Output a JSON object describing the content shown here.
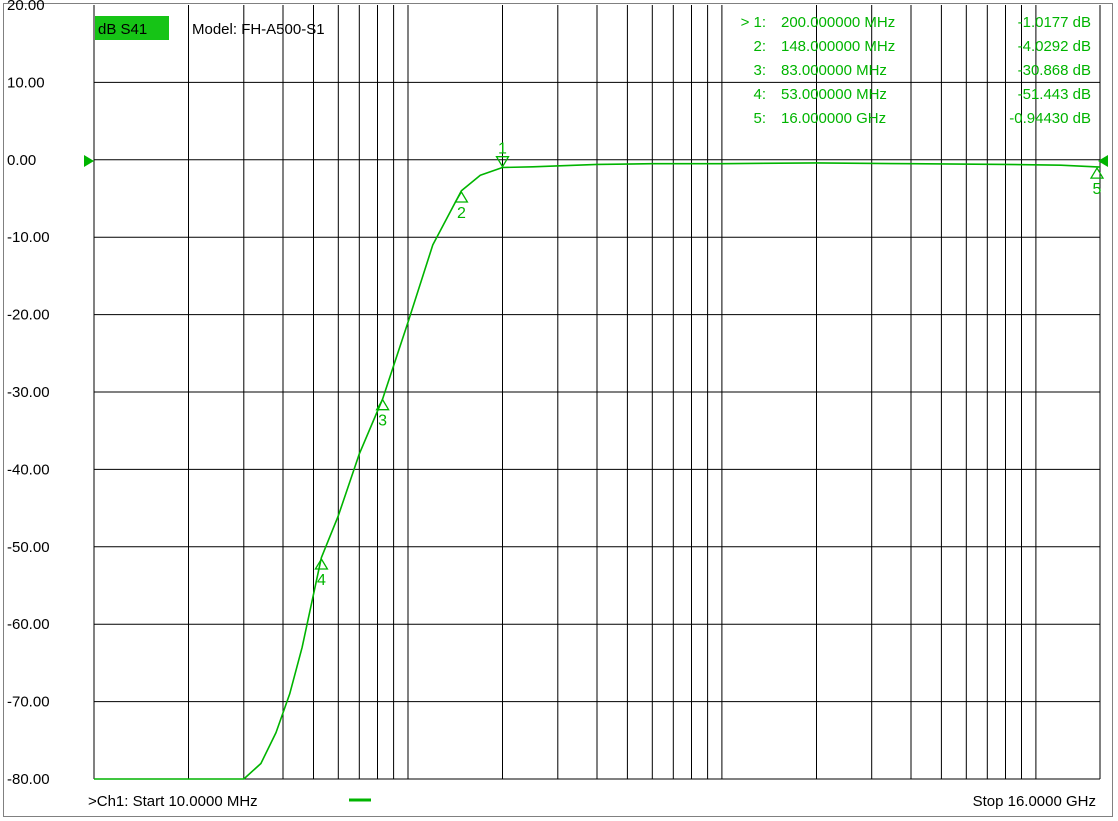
{
  "colors": {
    "trace": "#00b400",
    "trace_tag_bg": "#16c416",
    "grid": "#000000",
    "background": "#ffffff",
    "text": "#000000"
  },
  "header": {
    "trace_tag": "dB S41",
    "model": "Model: FH-A500-S1"
  },
  "footer": {
    "start": ">Ch1: Start  10.0000 MHz",
    "stop": "Stop  16.0000 GHz"
  },
  "marker_table": [
    {
      "id": "> 1:",
      "freq": "200.000000 MHz",
      "value": "-1.0177 dB"
    },
    {
      "id": "2:",
      "freq": "148.000000 MHz",
      "value": "-4.0292 dB"
    },
    {
      "id": "3:",
      "freq": "83.000000 MHz",
      "value": "-30.868 dB"
    },
    {
      "id": "4:",
      "freq": "53.000000 MHz",
      "value": "-51.443 dB"
    },
    {
      "id": "5:",
      "freq": "16.000000 GHz",
      "value": "-0.94430 dB"
    }
  ],
  "chart_data": {
    "type": "line",
    "title": "",
    "xlabel": "",
    "ylabel": "",
    "x_scale": "log",
    "x_unit": "MHz",
    "xlim": [
      10,
      16000
    ],
    "ylim": [
      -80,
      20
    ],
    "grid": true,
    "y_ticks": [
      "20.00",
      "10.00",
      "0.00",
      "-10.00",
      "-20.00",
      "-30.00",
      "-40.00",
      "-50.00",
      "-60.00",
      "-70.00",
      "-80.00"
    ],
    "series": [
      {
        "x": [
          10,
          20,
          30,
          34,
          38,
          42,
          46,
          53,
          60,
          70,
          83,
          100,
          120,
          148,
          170,
          200,
          250,
          400,
          600,
          1000,
          2000,
          4000,
          8000,
          12000,
          16000
        ],
        "y": [
          -80,
          -80,
          -80,
          -78,
          -74,
          -69,
          -63,
          -51.4,
          -46,
          -38,
          -30.9,
          -21,
          -11,
          -4.0,
          -2,
          -1.0,
          -0.9,
          -0.6,
          -0.5,
          -0.5,
          -0.4,
          -0.5,
          -0.6,
          -0.7,
          -0.94
        ]
      }
    ],
    "markers": [
      {
        "label": "1",
        "x": 200,
        "y": -1.0177,
        "style": "down"
      },
      {
        "label": "2",
        "x": 148,
        "y": -4.0292,
        "style": "up"
      },
      {
        "label": "3",
        "x": 83,
        "y": -30.868,
        "style": "up"
      },
      {
        "label": "4",
        "x": 53,
        "y": -51.443,
        "style": "up"
      },
      {
        "label": "5",
        "x": 16000,
        "y": -0.9443,
        "style": "up"
      }
    ]
  }
}
